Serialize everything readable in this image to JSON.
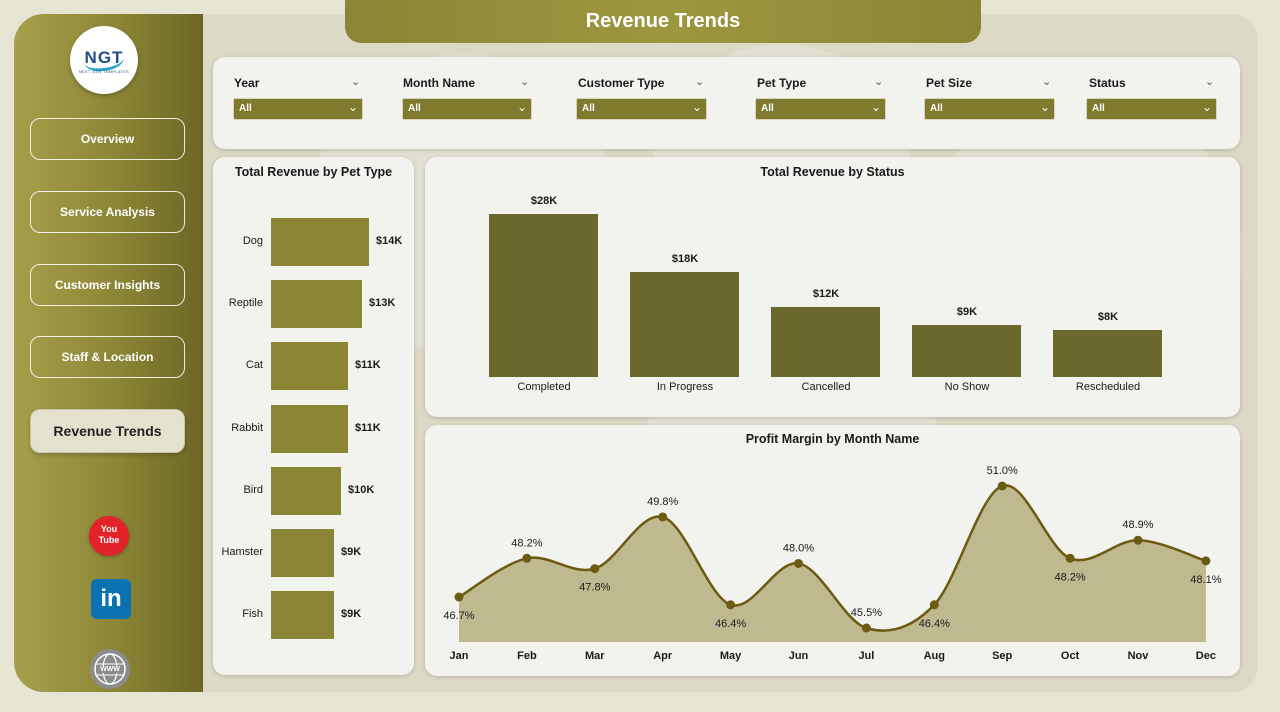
{
  "title": "Revenue Trends",
  "logo": {
    "text": "NGT",
    "subtext": "NEXT GEN TEMPLATES"
  },
  "nav": [
    {
      "label": "Overview",
      "active": false
    },
    {
      "label": "Service Analysis",
      "active": false
    },
    {
      "label": "Customer Insights",
      "active": false
    },
    {
      "label": "Staff & Location",
      "active": false
    },
    {
      "label": "Revenue Trends",
      "active": true
    }
  ],
  "social": {
    "youtube_top": "You",
    "youtube_bottom": "Tube",
    "linkedin": "in",
    "web": "WWW"
  },
  "filters": [
    {
      "label": "Year",
      "value": "All"
    },
    {
      "label": "Month Name",
      "value": "All"
    },
    {
      "label": "Customer Type",
      "value": "All"
    },
    {
      "label": "Pet Type",
      "value": "All"
    },
    {
      "label": "Pet Size",
      "value": "All"
    },
    {
      "label": "Status",
      "value": "All"
    }
  ],
  "colors": {
    "accent": "#8b8536",
    "bar_dark": "#6b682e",
    "line": "#6b5a10",
    "area": "#bfb990",
    "card": "#f2f2ef"
  },
  "chart_data": [
    {
      "type": "bar",
      "orientation": "horizontal",
      "title": "Total Revenue by Pet Type",
      "categories": [
        "Dog",
        "Reptile",
        "Cat",
        "Rabbit",
        "Bird",
        "Hamster",
        "Fish"
      ],
      "values": [
        14,
        13,
        11,
        11,
        10,
        9,
        9
      ],
      "labels": [
        "$14K",
        "$13K",
        "$11K",
        "$11K",
        "$10K",
        "$9K",
        "$9K"
      ]
    },
    {
      "type": "bar",
      "title": "Total Revenue by Status",
      "categories": [
        "Completed",
        "In Progress",
        "Cancelled",
        "No Show",
        "Rescheduled"
      ],
      "values": [
        28,
        18,
        12,
        9,
        8
      ],
      "labels": [
        "$28K",
        "$18K",
        "$12K",
        "$9K",
        "$8K"
      ]
    },
    {
      "type": "area",
      "title": "Profit Margin by Month Name",
      "categories": [
        "Jan",
        "Feb",
        "Mar",
        "Apr",
        "May",
        "Jun",
        "Jul",
        "Aug",
        "Sep",
        "Oct",
        "Nov",
        "Dec"
      ],
      "values": [
        46.7,
        48.2,
        47.8,
        49.8,
        46.4,
        48.0,
        45.5,
        46.4,
        51.0,
        48.2,
        48.9,
        48.1
      ],
      "labels": [
        "46.7%",
        "48.2%",
        "47.8%",
        "49.8%",
        "46.4%",
        "48.0%",
        "45.5%",
        "46.4%",
        "51.0%",
        "48.2%",
        "48.9%",
        "48.1%"
      ],
      "label_positions": [
        "below",
        "above",
        "below",
        "above",
        "below",
        "above",
        "above",
        "below",
        "above",
        "below",
        "above",
        "below"
      ]
    }
  ]
}
